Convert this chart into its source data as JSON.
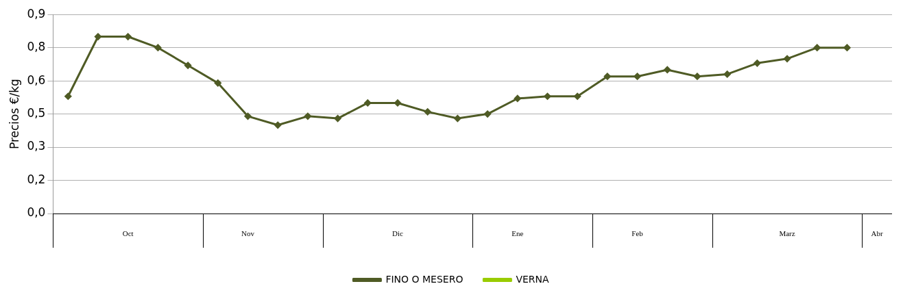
{
  "chart_data": {
    "type": "line",
    "ylabel": "Precios €/kg",
    "categories": [
      null,
      null,
      "Oct",
      null,
      null,
      null,
      "Nov",
      null,
      null,
      null,
      null,
      "Dic",
      null,
      null,
      null,
      "Ene",
      null,
      null,
      null,
      "Feb",
      null,
      null,
      null,
      null,
      "Marz",
      null,
      null,
      "Abr"
    ],
    "series": [
      {
        "name": "FINO O MESERO",
        "color": "#4f5b25",
        "values": [
          0.53,
          0.8,
          0.8,
          0.75,
          0.67,
          0.59,
          0.44,
          0.4,
          0.44,
          0.43,
          0.5,
          0.5,
          0.46,
          0.43,
          0.45,
          0.52,
          0.53,
          0.53,
          0.62,
          0.62,
          0.65,
          0.62,
          0.63,
          0.68,
          0.7,
          0.75,
          0.75,
          null
        ]
      },
      {
        "name": "VERNA",
        "color": "#99cc00",
        "values": [
          null,
          null,
          null,
          null,
          null,
          null,
          null,
          null,
          null,
          null,
          null,
          null,
          null,
          null,
          null,
          null,
          null,
          null,
          null,
          null,
          null,
          null,
          null,
          null,
          null,
          null,
          null,
          null
        ]
      }
    ],
    "ylim": [
      0,
      0.9
    ],
    "yticks": [
      {
        "value": 0,
        "label": "0,0"
      },
      {
        "value": 0.15,
        "label": "0,2"
      },
      {
        "value": 0.3,
        "label": "0,3"
      },
      {
        "value": 0.45,
        "label": "0,5"
      },
      {
        "value": 0.6,
        "label": "0,6"
      },
      {
        "value": 0.75,
        "label": "0,8"
      },
      {
        "value": 0.9,
        "label": "0,9"
      }
    ],
    "grid": "y",
    "legend": "bottom",
    "marker": "diamond",
    "line_style": "solid"
  }
}
